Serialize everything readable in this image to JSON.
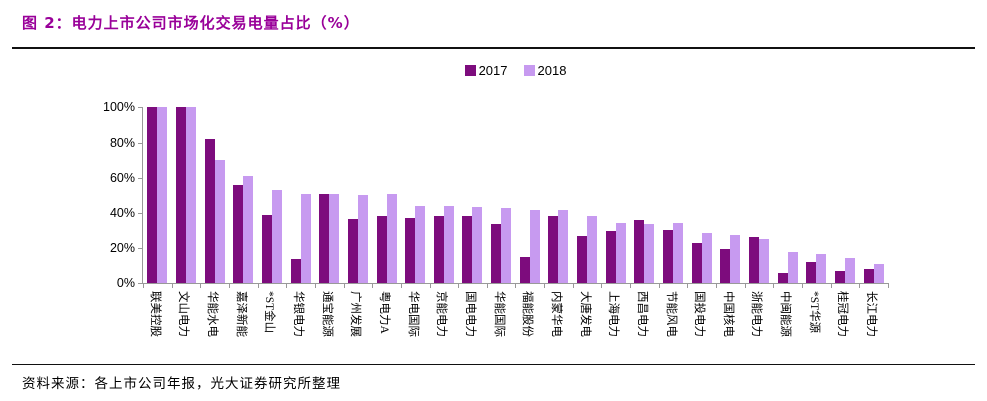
{
  "figure": {
    "title": "图 2：电力上市公司市场化交易电量占比（%）",
    "source": "资料来源：各上市公司年报，光大证券研究所整理"
  },
  "colors": {
    "title_text": "#990099",
    "bar_2017": "#7D0C7D",
    "bar_2018": "#C79AF0",
    "axis": "#999999",
    "rule": "#111111",
    "label_text": "#000000"
  },
  "chart_data": {
    "type": "bar",
    "title": "电力上市公司市场化交易电量占比（%）",
    "categories": [
      "联美控股",
      "文山电力",
      "华能水电",
      "嘉泽新能",
      "*ST金山",
      "华银电力",
      "通宝能源",
      "广州发展",
      "粤电力A",
      "华电国际",
      "京能电力",
      "国电电力",
      "华能国际",
      "福能股份",
      "内蒙华电",
      "大唐发电",
      "上海电力",
      "西昌电力",
      "节能风电",
      "国投电力",
      "中国核电",
      "浙能电力",
      "中闽能源",
      "*ST华源",
      "桂冠电力",
      "长江电力"
    ],
    "series": [
      {
        "name": "2017",
        "color": "#7D0C7D",
        "values": [
          100,
          100,
          82,
          56,
          39,
          14,
          50.5,
          36.5,
          38.5,
          37,
          38,
          38,
          33.5,
          15,
          38.5,
          27,
          29.5,
          36,
          30,
          23,
          19.5,
          26,
          6,
          12,
          7,
          8
        ]
      },
      {
        "name": "2018",
        "color": "#C79AF0",
        "values": [
          100,
          100,
          70,
          61,
          53,
          51,
          50.5,
          50,
          50.5,
          44,
          44,
          43.5,
          43,
          41.5,
          41.5,
          38,
          34,
          33.5,
          34,
          28.5,
          27.5,
          25,
          17.5,
          16.5,
          14.5,
          11
        ]
      }
    ],
    "xlabel": "",
    "ylabel": "",
    "ylim": [
      0,
      100
    ],
    "yticks": [
      0,
      20,
      40,
      60,
      80,
      100
    ],
    "ytick_suffix": "%",
    "grid": false,
    "legend_position": "top-center",
    "xlabel_rotation_deg": 90
  }
}
